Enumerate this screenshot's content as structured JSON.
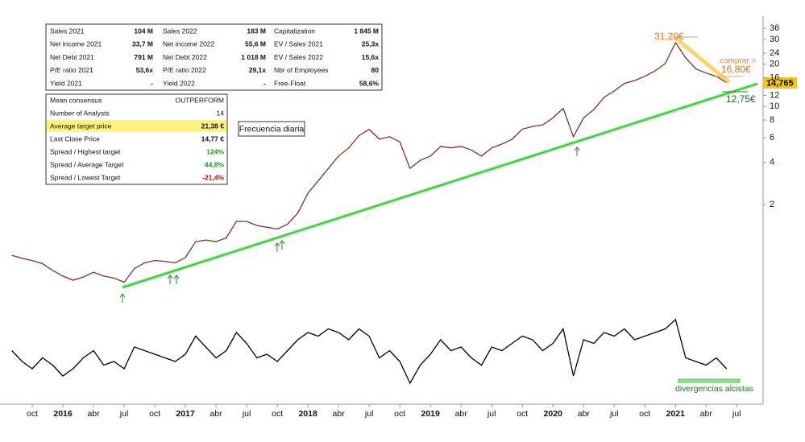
{
  "tables": {
    "summary": {
      "rows": [
        [
          "Sales 2021",
          "104 M",
          "Sales 2022",
          "183 M",
          "Capitalization",
          "1 845 M"
        ],
        [
          "Net income 2021",
          "33,7 M",
          "Net income 2022",
          "55,6 M",
          "EV / Sales 2021",
          "25,3x"
        ],
        [
          "Net Debt 2021",
          "791 M",
          "Net Debt 2022",
          "1 018 M",
          "EV / Sales 2022",
          "15,6x"
        ],
        [
          "P/E ratio 2021",
          "53,6x",
          "P/E ratio 2022",
          "29,1x",
          "Nbr of Employees",
          "80"
        ],
        [
          "Yield 2021",
          "-",
          "Yield 2022",
          "-",
          "Free-Float",
          "58,6%"
        ]
      ]
    },
    "consensus": {
      "rows": [
        [
          "Mean consensus",
          "OUTPERFORM"
        ],
        [
          "Number of Analysts",
          "14"
        ],
        [
          "Average target price",
          "21,38 €"
        ],
        [
          "Last Close Price",
          "14,77 €"
        ],
        [
          "Spread / Highest target",
          "124%"
        ],
        [
          "Spread / Average Target",
          "44,8%"
        ],
        [
          "Spread / Lowest Target",
          "-21,4%"
        ]
      ]
    }
  },
  "chart_data": {
    "type": "line",
    "log_scale": true,
    "color": "#7a3030",
    "categories": [
      null,
      null,
      "oct",
      null,
      null,
      "2016",
      null,
      null,
      "abr",
      null,
      null,
      "jul",
      null,
      null,
      "oct",
      null,
      null,
      "2017",
      null,
      null,
      "abr",
      null,
      null,
      "jul",
      null,
      null,
      "oct",
      null,
      null,
      "2018",
      null,
      null,
      "abr",
      null,
      null,
      "jul",
      null,
      null,
      "oct",
      null,
      null,
      "2019",
      null,
      null,
      "abr",
      null,
      null,
      "jul",
      null,
      null,
      "oct",
      null,
      null,
      "2020",
      null,
      null,
      "abr",
      null,
      null,
      "jul",
      null,
      null,
      "oct",
      null,
      null,
      "2021",
      null,
      null,
      "abr",
      null,
      null,
      "jul",
      null,
      null
    ],
    "values": [
      0.87,
      0.83,
      0.8,
      0.76,
      0.68,
      0.62,
      0.58,
      0.61,
      0.66,
      0.62,
      0.6,
      0.56,
      0.7,
      0.77,
      0.8,
      0.79,
      0.77,
      0.84,
      1.09,
      1.12,
      1.09,
      1.16,
      1.52,
      1.52,
      1.42,
      1.38,
      1.34,
      1.45,
      1.74,
      2.41,
      2.95,
      3.62,
      4.44,
      5.07,
      6.2,
      6.88,
      5.85,
      6.09,
      5.6,
      3.62,
      4.13,
      4.44,
      5.2,
      5.07,
      5.2,
      4.9,
      4.44,
      5.07,
      5.4,
      5.85,
      6.9,
      7.2,
      7.4,
      8.3,
      9.7,
      6.09,
      8.3,
      9.5,
      11.6,
      12.9,
      14.6,
      15.3,
      16.4,
      17.9,
      20.2,
      28.5,
      22.2,
      18.5,
      17.3,
      16.4,
      14.8,
      null,
      null,
      null
    ],
    "ylim": [
      0.38,
      44
    ],
    "yticks": [
      2,
      4,
      6,
      8,
      10,
      12,
      16,
      20,
      24,
      30,
      36
    ],
    "last_price_label": "14,765",
    "oscillator": {
      "ylim": [
        0,
        100
      ],
      "values": [
        55,
        40,
        30,
        45,
        35,
        20,
        30,
        45,
        55,
        35,
        40,
        30,
        60,
        55,
        50,
        45,
        40,
        50,
        75,
        60,
        45,
        55,
        80,
        65,
        45,
        50,
        40,
        55,
        70,
        80,
        75,
        85,
        80,
        70,
        85,
        75,
        45,
        55,
        40,
        10,
        35,
        50,
        70,
        55,
        60,
        45,
        35,
        60,
        55,
        65,
        75,
        70,
        55,
        65,
        85,
        20,
        70,
        65,
        80,
        75,
        85,
        70,
        75,
        80,
        85,
        98,
        45,
        40,
        35,
        45,
        30,
        null,
        null,
        null
      ]
    },
    "annotations": {
      "high": "31,20€",
      "buy": "comprar >",
      "target": "16,80€",
      "support": "12,75€",
      "frequency": "Frecuencia diaria",
      "divergence": "divergencias alcistas"
    }
  }
}
